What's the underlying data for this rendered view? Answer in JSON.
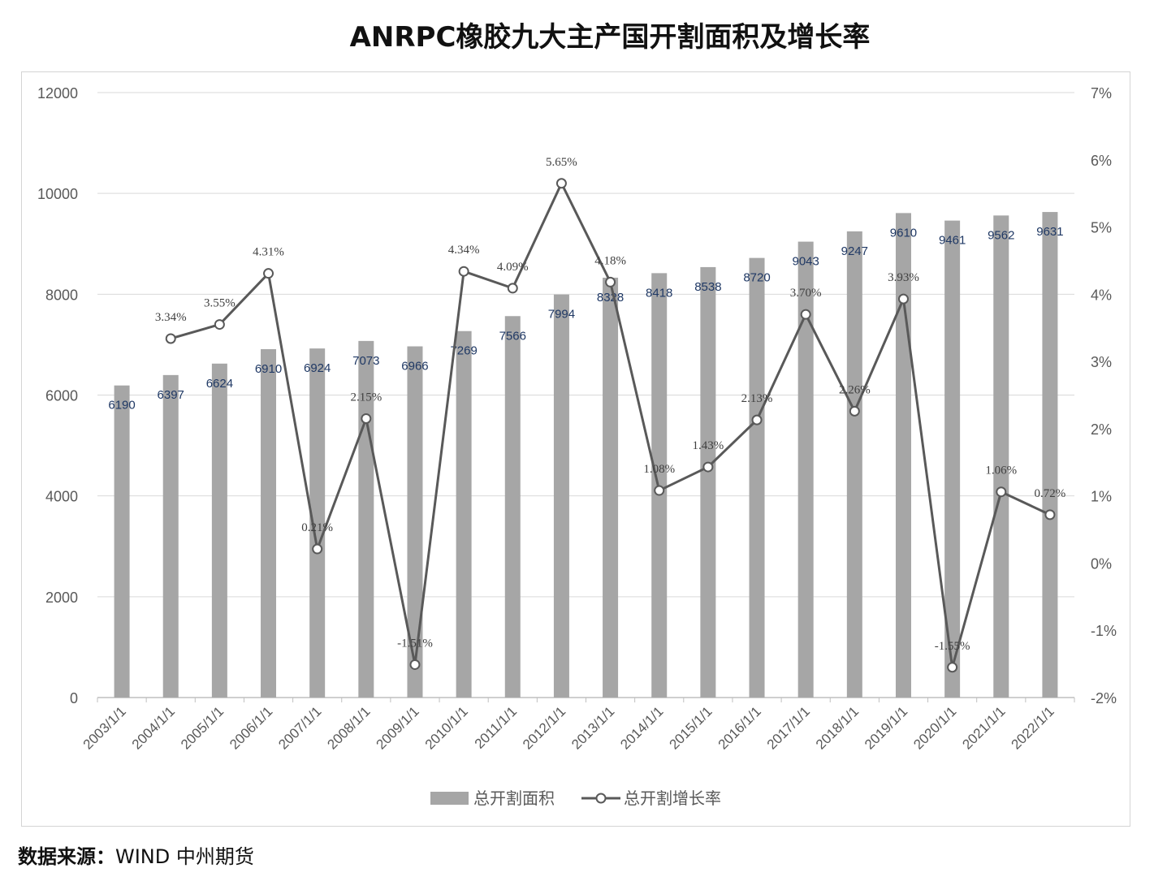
{
  "title": "ANRPC橡胶九大主产国开割面积及增长率",
  "source_label": "数据来源：",
  "source_value": "WIND  中州期货",
  "colors": {
    "bar": "#a6a6a6",
    "line": "#595959",
    "grid": "#d9d9d9",
    "axis_text": "#595959",
    "bar_label": "#1f3864"
  },
  "chart_data": {
    "type": "bar",
    "title": "ANRPC橡胶九大主产国开割面积及增长率",
    "categories": [
      "2003/1/1",
      "2004/1/1",
      "2005/1/1",
      "2006/1/1",
      "2007/1/1",
      "2008/1/1",
      "2009/1/1",
      "2010/1/1",
      "2011/1/1",
      "2012/1/1",
      "2013/1/1",
      "2014/1/1",
      "2015/1/1",
      "2016/1/1",
      "2017/1/1",
      "2018/1/1",
      "2019/1/1",
      "2020/1/1",
      "2021/1/1",
      "2022/1/1"
    ],
    "series": [
      {
        "name": "总开割面积",
        "type": "bar",
        "axis": "left",
        "values": [
          6190,
          6397,
          6624,
          6910,
          6924,
          7073,
          6966,
          7269,
          7566,
          7994,
          8328,
          8418,
          8538,
          8720,
          9043,
          9247,
          9610,
          9461,
          9562,
          9631
        ],
        "labels": [
          "6190",
          "6397",
          "6624",
          "6910",
          "6924",
          "7073",
          "6966",
          "7269",
          "7566",
          "7994",
          "8328",
          "8418",
          "8538",
          "8720",
          "9043",
          "9247",
          "9610",
          "9461",
          "9562",
          "9631"
        ]
      },
      {
        "name": "总开割增长率",
        "type": "line",
        "axis": "right",
        "values": [
          null,
          3.34,
          3.55,
          4.31,
          0.21,
          2.15,
          -1.51,
          4.34,
          4.09,
          5.65,
          4.18,
          1.08,
          1.43,
          2.13,
          3.7,
          2.26,
          3.93,
          -1.55,
          1.06,
          0.72
        ],
        "labels": [
          "",
          "3.34%",
          "3.55%",
          "4.31%",
          "0.21%",
          "2.15%",
          "-1.51%",
          "4.34%",
          "4.09%",
          "5.65%",
          "4.18%",
          "1.08%",
          "1.43%",
          "2.13%",
          "3.70%",
          "2.26%",
          "3.93%",
          "-1.55%",
          "1.06%",
          "0.72%"
        ]
      }
    ],
    "y_left": {
      "min": 0,
      "max": 12000,
      "ticks": [
        "0",
        "2000",
        "4000",
        "6000",
        "8000",
        "10000",
        "12000"
      ]
    },
    "y_right": {
      "min": -2,
      "max": 7,
      "ticks": [
        "-2%",
        "-1%",
        "0%",
        "1%",
        "2%",
        "3%",
        "4%",
        "5%",
        "6%",
        "7%"
      ]
    },
    "grid": true,
    "legend_position": "bottom"
  }
}
